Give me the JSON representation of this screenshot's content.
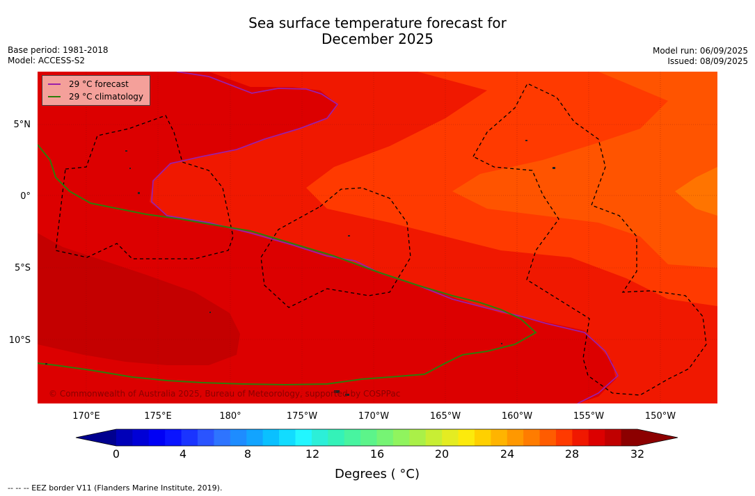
{
  "title_line1": "Sea surface temperature forecast for",
  "title_line2": "December 2025",
  "base_period": "Base period: 1981-2018",
  "model": "Model: ACCESS-S2",
  "model_run": "Model run: 06/09/2025",
  "issued": "Issued: 08/09/2025",
  "legend": {
    "forecast_label": "29 °C  forecast",
    "forecast_color": "#9b1fa8",
    "climatology_label": "29 °C  climatology",
    "climatology_color": "#2e7d0a"
  },
  "credit": "© Commonwealth of Australia 2025, Bureau of Meteorology, supported by COSPPac",
  "lat_labels": [
    "5°N",
    "0°",
    "5°S",
    "10°S"
  ],
  "lon_labels": [
    "170°E",
    "175°E",
    "180°",
    "175°W",
    "170°W",
    "165°W",
    "160°W",
    "155°W",
    "150°W"
  ],
  "colorbar": {
    "tick_labels": [
      "0",
      "4",
      "8",
      "12",
      "16",
      "20",
      "24",
      "28",
      "32"
    ],
    "title": "Degrees ( °C)",
    "min": 0,
    "max": 32,
    "step": 1,
    "colors": [
      "#00008f",
      "#0000b8",
      "#0000d6",
      "#0000f5",
      "#0a14ff",
      "#1a34ff",
      "#2a54ff",
      "#2e74ff",
      "#1e8cff",
      "#12a4ff",
      "#0ac0ff",
      "#12dcff",
      "#22f6ff",
      "#2cefd8",
      "#34f2b8",
      "#48f4a0",
      "#5cf48a",
      "#76f474",
      "#90f45e",
      "#aaf048",
      "#c8ee34",
      "#e4ec22",
      "#fcea0c",
      "#ffd000",
      "#ffb400",
      "#ff9800",
      "#ff7c00",
      "#ff5c00",
      "#ff3a00",
      "#f01800",
      "#dc0000",
      "#c00000",
      "#8c0000"
    ]
  },
  "footer": "-- -- -- EEZ border V11 (Flanders Marine Institute, 2019)."
}
